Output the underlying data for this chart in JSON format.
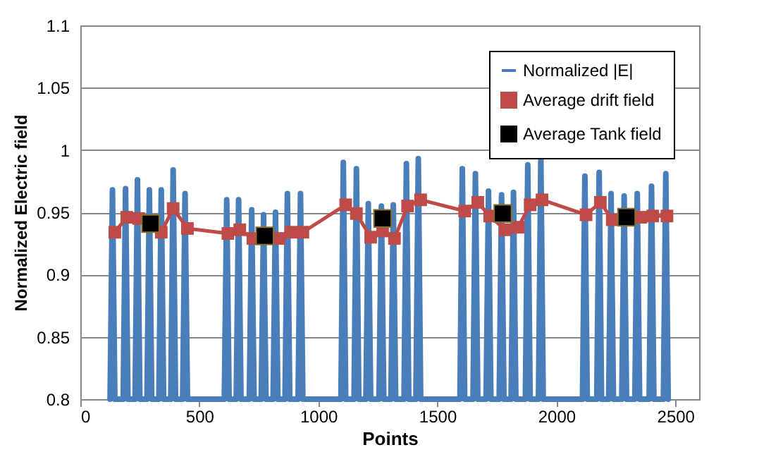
{
  "chart_data": {
    "type": "line",
    "xlabel": "Points",
    "ylabel": "Normalized Electric field",
    "xlim": [
      0,
      2600
    ],
    "xticks": [
      0,
      500,
      1000,
      1500,
      2000,
      2500
    ],
    "ylim": [
      0.8,
      1.1
    ],
    "yticks": [
      0.8,
      0.85,
      0.9,
      0.95,
      1,
      1.05,
      1.1
    ],
    "grid": "y",
    "legend": "top right",
    "series": [
      {
        "name": "Normalized |E|",
        "color": "#4a7ebb",
        "marker": "none",
        "x": [
          125,
          135,
          145,
          180,
          190,
          200,
          230,
          240,
          250,
          280,
          290,
          300,
          330,
          340,
          350,
          380,
          390,
          400,
          430,
          440,
          450,
          605,
          615,
          625,
          655,
          665,
          675,
          710,
          720,
          730,
          760,
          770,
          780,
          810,
          820,
          830,
          860,
          870,
          880,
          915,
          925,
          935,
          1095,
          1105,
          1115,
          1150,
          1160,
          1170,
          1200,
          1210,
          1220,
          1255,
          1265,
          1275,
          1305,
          1315,
          1325,
          1360,
          1370,
          1380,
          1410,
          1420,
          1430,
          1595,
          1605,
          1615,
          1650,
          1660,
          1670,
          1705,
          1715,
          1725,
          1760,
          1770,
          1780,
          1810,
          1820,
          1830,
          1870,
          1880,
          1890,
          1925,
          1935,
          1945,
          2110,
          2120,
          2130,
          2170,
          2180,
          2190,
          2220,
          2230,
          2240,
          2275,
          2285,
          2295,
          2330,
          2340,
          2350,
          2390,
          2400,
          2410,
          2450,
          2460,
          2470
        ],
        "values": [
          0.8,
          0.968,
          0.8,
          0.8,
          0.969,
          0.8,
          0.8,
          0.976,
          0.8,
          0.8,
          0.968,
          0.8,
          0.8,
          0.968,
          0.8,
          0.8,
          0.984,
          0.8,
          0.8,
          0.965,
          0.8,
          0.8,
          0.96,
          0.8,
          0.8,
          0.96,
          0.8,
          0.8,
          0.952,
          0.8,
          0.8,
          0.948,
          0.8,
          0.8,
          0.95,
          0.8,
          0.8,
          0.965,
          0.8,
          0.8,
          0.965,
          0.8,
          0.8,
          0.99,
          0.8,
          0.8,
          0.985,
          0.8,
          0.8,
          0.957,
          0.8,
          0.8,
          0.955,
          0.8,
          0.8,
          0.956,
          0.8,
          0.8,
          0.989,
          0.8,
          0.8,
          0.993,
          0.8,
          0.8,
          0.985,
          0.8,
          0.8,
          0.981,
          0.8,
          0.8,
          0.967,
          0.8,
          0.8,
          0.964,
          0.8,
          0.8,
          0.966,
          0.8,
          0.8,
          0.988,
          0.8,
          0.8,
          0.994,
          0.8,
          0.8,
          0.979,
          0.8,
          0.8,
          0.982,
          0.8,
          0.8,
          0.965,
          0.8,
          0.8,
          0.963,
          0.8,
          0.8,
          0.965,
          0.8,
          0.8,
          0.971,
          0.8,
          0.8,
          0.981,
          0.8
        ]
      },
      {
        "name": "Average drift field",
        "color": "#be4b48",
        "marker": "square",
        "x": [
          145,
          195,
          245,
          295,
          340,
          390,
          450,
          620,
          670,
          725,
          775,
          835,
          885,
          935,
          1115,
          1160,
          1220,
          1270,
          1320,
          1375,
          1430,
          1615,
          1670,
          1720,
          1785,
          1840,
          1890,
          1940,
          2125,
          2185,
          2235,
          2295,
          2355,
          2405,
          2465
        ],
        "values": [
          0.934,
          0.946,
          0.945,
          null,
          0.934,
          0.953,
          0.937,
          0.933,
          0.936,
          0.929,
          null,
          0.929,
          0.934,
          0.934,
          0.956,
          0.949,
          0.93,
          0.935,
          0.929,
          0.955,
          0.96,
          0.951,
          0.958,
          0.947,
          0.936,
          0.938,
          0.956,
          0.96,
          0.948,
          0.958,
          0.944,
          null,
          0.946,
          0.947,
          0.947
        ]
      },
      {
        "name": "Average Tank field",
        "color": "#000000",
        "type": "scatter",
        "marker": "square",
        "x": [
          295,
          775,
          1270,
          1775,
          2295
        ],
        "values": [
          0.941,
          0.931,
          0.945,
          0.949,
          0.946
        ]
      }
    ]
  }
}
